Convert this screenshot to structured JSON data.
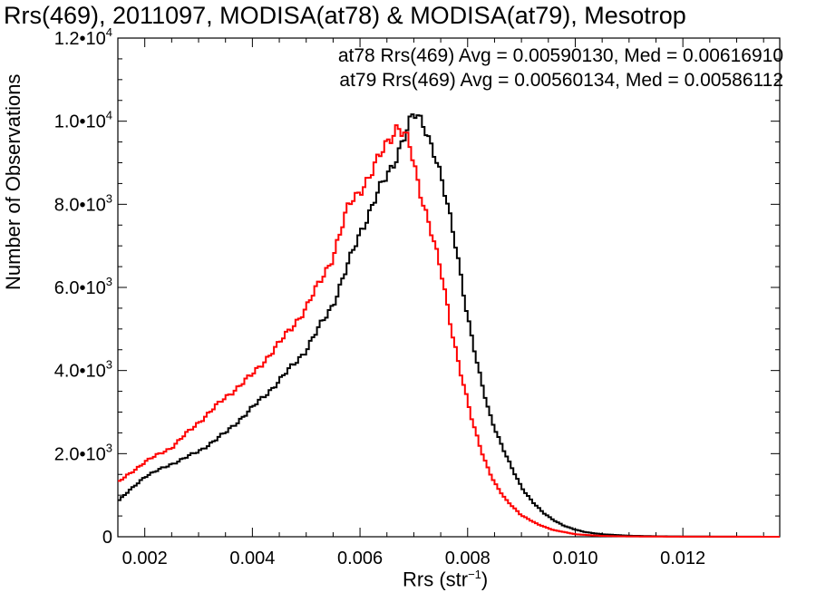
{
  "chart_data": {
    "type": "line",
    "style": "step histogram",
    "title": "Rrs(469), 2011097, MODISA(at78) & MODISA(at79), Mesotrop",
    "xlabel_main": "Rrs (str",
    "xlabel_sup": "−1",
    "xlabel_tail": ")",
    "ylabel": "Number of Observations",
    "xlim": [
      0.0015,
      0.0138
    ],
    "ylim": [
      0,
      12000
    ],
    "x_ticks": [
      {
        "value": 0.002,
        "label": "0.002"
      },
      {
        "value": 0.004,
        "label": "0.004"
      },
      {
        "value": 0.006,
        "label": "0.006"
      },
      {
        "value": 0.008,
        "label": "0.008"
      },
      {
        "value": 0.01,
        "label": "0.010"
      },
      {
        "value": 0.012,
        "label": "0.012"
      }
    ],
    "y_ticks": [
      {
        "value": 0,
        "mant": "0",
        "exp": ""
      },
      {
        "value": 2000,
        "mant": "2.0•10",
        "exp": "3"
      },
      {
        "value": 4000,
        "mant": "4.0•10",
        "exp": "3"
      },
      {
        "value": 6000,
        "mant": "6.0•10",
        "exp": "3"
      },
      {
        "value": 8000,
        "mant": "8.0•10",
        "exp": "3"
      },
      {
        "value": 10000,
        "mant": "1.0•10",
        "exp": "4"
      },
      {
        "value": 12000,
        "mant": "1.2•10",
        "exp": "4"
      }
    ],
    "series": [
      {
        "name": "at78",
        "color": "#000000",
        "stat_text": "at78 Rrs(469) Avg = 0.00590130, Med = 0.00616910",
        "x": [
          0.0015,
          0.002,
          0.0025,
          0.003,
          0.0035,
          0.004,
          0.0045,
          0.005,
          0.0055,
          0.006,
          0.0063,
          0.0066,
          0.0068,
          0.007,
          0.0072,
          0.0074,
          0.0076,
          0.0078,
          0.008,
          0.0082,
          0.0084,
          0.0086,
          0.0088,
          0.009,
          0.0092,
          0.0094,
          0.0096,
          0.0098,
          0.01,
          0.0102,
          0.0105,
          0.011,
          0.0115,
          0.012,
          0.013,
          0.0138
        ],
        "y": [
          850,
          1450,
          1750,
          2050,
          2500,
          3100,
          3750,
          4500,
          5600,
          7300,
          8200,
          8900,
          9600,
          10150,
          9900,
          9200,
          8100,
          6900,
          5300,
          4000,
          3000,
          2300,
          1700,
          1200,
          850,
          580,
          400,
          260,
          170,
          110,
          60,
          25,
          12,
          6,
          2,
          1
        ]
      },
      {
        "name": "at79",
        "color": "#ff0000",
        "stat_text": "at79 Rrs(469) Avg = 0.00560134, Med = 0.00586112",
        "x": [
          0.0015,
          0.002,
          0.0025,
          0.003,
          0.0035,
          0.004,
          0.0045,
          0.005,
          0.0055,
          0.0058,
          0.0062,
          0.0065,
          0.0067,
          0.0069,
          0.0071,
          0.0073,
          0.0075,
          0.0077,
          0.0079,
          0.0081,
          0.0083,
          0.0085,
          0.0087,
          0.009,
          0.0093,
          0.0096,
          0.01,
          0.0105,
          0.011,
          0.012,
          0.0138
        ],
        "y": [
          1300,
          1800,
          2150,
          2750,
          3350,
          3900,
          4650,
          5500,
          6750,
          8000,
          8700,
          9500,
          9900,
          9500,
          8400,
          7500,
          6400,
          5000,
          3800,
          2700,
          1900,
          1300,
          900,
          520,
          300,
          160,
          60,
          20,
          8,
          2,
          1
        ]
      }
    ]
  }
}
